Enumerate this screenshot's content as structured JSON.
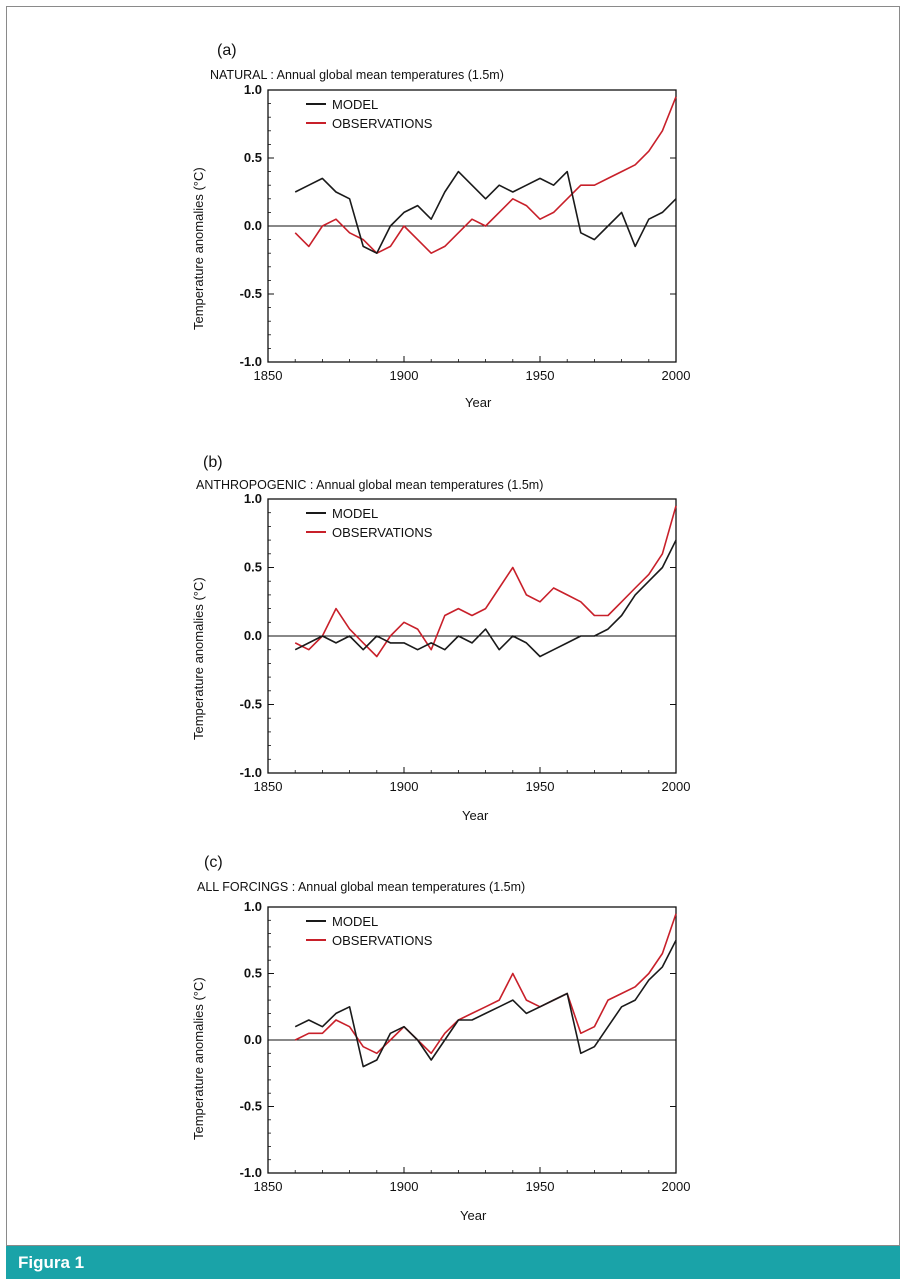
{
  "caption": {
    "label": "Figura 1"
  },
  "colors": {
    "model": "#1a1a1a",
    "observations": "#c8202a",
    "caption_bar": "#1aa3a8"
  },
  "chart_data": [
    {
      "type": "line",
      "panel_label": "(a)",
      "title": "NATURAL : Annual global mean temperatures (1.5m)",
      "xlabel": "Year",
      "ylabel": "Temperature anomalies (°C)",
      "xlim": [
        1850,
        2000
      ],
      "ylim": [
        -1.0,
        1.0
      ],
      "xticks": [
        "1850",
        "1900",
        "1950",
        "2000"
      ],
      "yticks": [
        "1.0",
        "0.5",
        "0.0",
        "-0.5",
        "-1.0"
      ],
      "legend": [
        "MODEL",
        "OBSERVATIONS"
      ],
      "legend_position": "top-left",
      "series": [
        {
          "name": "MODEL",
          "x": [
            1860,
            1865,
            1870,
            1875,
            1880,
            1885,
            1890,
            1895,
            1900,
            1905,
            1910,
            1915,
            1920,
            1925,
            1930,
            1935,
            1940,
            1945,
            1950,
            1955,
            1960,
            1965,
            1970,
            1975,
            1980,
            1985,
            1990,
            1995,
            2000
          ],
          "values": [
            0.25,
            0.3,
            0.35,
            0.25,
            0.2,
            -0.15,
            -0.2,
            0.0,
            0.1,
            0.15,
            0.05,
            0.25,
            0.4,
            0.3,
            0.2,
            0.3,
            0.25,
            0.3,
            0.35,
            0.3,
            0.4,
            -0.05,
            -0.1,
            0.0,
            0.1,
            -0.15,
            0.05,
            0.1,
            0.2
          ]
        },
        {
          "name": "OBSERVATIONS",
          "x": [
            1860,
            1865,
            1870,
            1875,
            1880,
            1885,
            1890,
            1895,
            1900,
            1905,
            1910,
            1915,
            1920,
            1925,
            1930,
            1935,
            1940,
            1945,
            1950,
            1955,
            1960,
            1965,
            1970,
            1975,
            1980,
            1985,
            1990,
            1995,
            2000
          ],
          "values": [
            -0.05,
            -0.15,
            0.0,
            0.05,
            -0.05,
            -0.1,
            -0.2,
            -0.15,
            0.0,
            -0.1,
            -0.2,
            -0.15,
            -0.05,
            0.05,
            0.0,
            0.1,
            0.2,
            0.15,
            0.05,
            0.1,
            0.2,
            0.3,
            0.3,
            0.35,
            0.4,
            0.45,
            0.55,
            0.7,
            0.95
          ]
        }
      ]
    },
    {
      "type": "line",
      "panel_label": "(b)",
      "title": "ANTHROPOGENIC : Annual global mean temperatures (1.5m)",
      "xlabel": "Year",
      "ylabel": "Temperature anomalies (°C)",
      "xlim": [
        1850,
        2000
      ],
      "ylim": [
        -1.0,
        1.0
      ],
      "xticks": [
        "1850",
        "1900",
        "1950",
        "2000"
      ],
      "yticks": [
        "1.0",
        "0.5",
        "0.0",
        "-0.5",
        "-1.0"
      ],
      "legend": [
        "MODEL",
        "OBSERVATIONS"
      ],
      "legend_position": "top-left",
      "series": [
        {
          "name": "MODEL",
          "x": [
            1860,
            1865,
            1870,
            1875,
            1880,
            1885,
            1890,
            1895,
            1900,
            1905,
            1910,
            1915,
            1920,
            1925,
            1930,
            1935,
            1940,
            1945,
            1950,
            1955,
            1960,
            1965,
            1970,
            1975,
            1980,
            1985,
            1990,
            1995,
            2000
          ],
          "values": [
            -0.1,
            -0.05,
            0.0,
            -0.05,
            0.0,
            -0.1,
            0.0,
            -0.05,
            -0.05,
            -0.1,
            -0.05,
            -0.1,
            0.0,
            -0.05,
            0.05,
            -0.1,
            0.0,
            -0.05,
            -0.15,
            -0.1,
            -0.05,
            0.0,
            0.0,
            0.05,
            0.15,
            0.3,
            0.4,
            0.5,
            0.7
          ]
        },
        {
          "name": "OBSERVATIONS",
          "x": [
            1860,
            1865,
            1870,
            1875,
            1880,
            1885,
            1890,
            1895,
            1900,
            1905,
            1910,
            1915,
            1920,
            1925,
            1930,
            1935,
            1940,
            1945,
            1950,
            1955,
            1960,
            1965,
            1970,
            1975,
            1980,
            1985,
            1990,
            1995,
            2000
          ],
          "values": [
            -0.05,
            -0.1,
            0.0,
            0.2,
            0.05,
            -0.05,
            -0.15,
            0.0,
            0.1,
            0.05,
            -0.1,
            0.15,
            0.2,
            0.15,
            0.2,
            0.35,
            0.5,
            0.3,
            0.25,
            0.35,
            0.3,
            0.25,
            0.15,
            0.15,
            0.25,
            0.35,
            0.45,
            0.6,
            0.95
          ]
        }
      ]
    },
    {
      "type": "line",
      "panel_label": "(c)",
      "title": "ALL FORCINGS : Annual global mean temperatures (1.5m)",
      "xlabel": "Year",
      "ylabel": "Temperature anomalies (°C)",
      "xlim": [
        1850,
        2000
      ],
      "ylim": [
        -1.0,
        1.0
      ],
      "xticks": [
        "1850",
        "1900",
        "1950",
        "2000"
      ],
      "yticks": [
        "1.0",
        "0.5",
        "0.0",
        "-0.5",
        "-1.0"
      ],
      "legend": [
        "MODEL",
        "OBSERVATIONS"
      ],
      "legend_position": "top-left",
      "series": [
        {
          "name": "MODEL",
          "x": [
            1860,
            1865,
            1870,
            1875,
            1880,
            1885,
            1890,
            1895,
            1900,
            1905,
            1910,
            1915,
            1920,
            1925,
            1930,
            1935,
            1940,
            1945,
            1950,
            1955,
            1960,
            1965,
            1970,
            1975,
            1980,
            1985,
            1990,
            1995,
            2000
          ],
          "values": [
            0.1,
            0.15,
            0.1,
            0.2,
            0.25,
            -0.2,
            -0.15,
            0.05,
            0.1,
            0.0,
            -0.15,
            0.0,
            0.15,
            0.15,
            0.2,
            0.25,
            0.3,
            0.2,
            0.25,
            0.3,
            0.35,
            -0.1,
            -0.05,
            0.1,
            0.25,
            0.3,
            0.45,
            0.55,
            0.75
          ]
        },
        {
          "name": "OBSERVATIONS",
          "x": [
            1860,
            1865,
            1870,
            1875,
            1880,
            1885,
            1890,
            1895,
            1900,
            1905,
            1910,
            1915,
            1920,
            1925,
            1930,
            1935,
            1940,
            1945,
            1950,
            1955,
            1960,
            1965,
            1970,
            1975,
            1980,
            1985,
            1990,
            1995,
            2000
          ],
          "values": [
            0.0,
            0.05,
            0.05,
            0.15,
            0.1,
            -0.05,
            -0.1,
            0.0,
            0.1,
            0.0,
            -0.1,
            0.05,
            0.15,
            0.2,
            0.25,
            0.3,
            0.5,
            0.3,
            0.25,
            0.3,
            0.35,
            0.05,
            0.1,
            0.3,
            0.35,
            0.4,
            0.5,
            0.65,
            0.95
          ]
        }
      ]
    }
  ]
}
